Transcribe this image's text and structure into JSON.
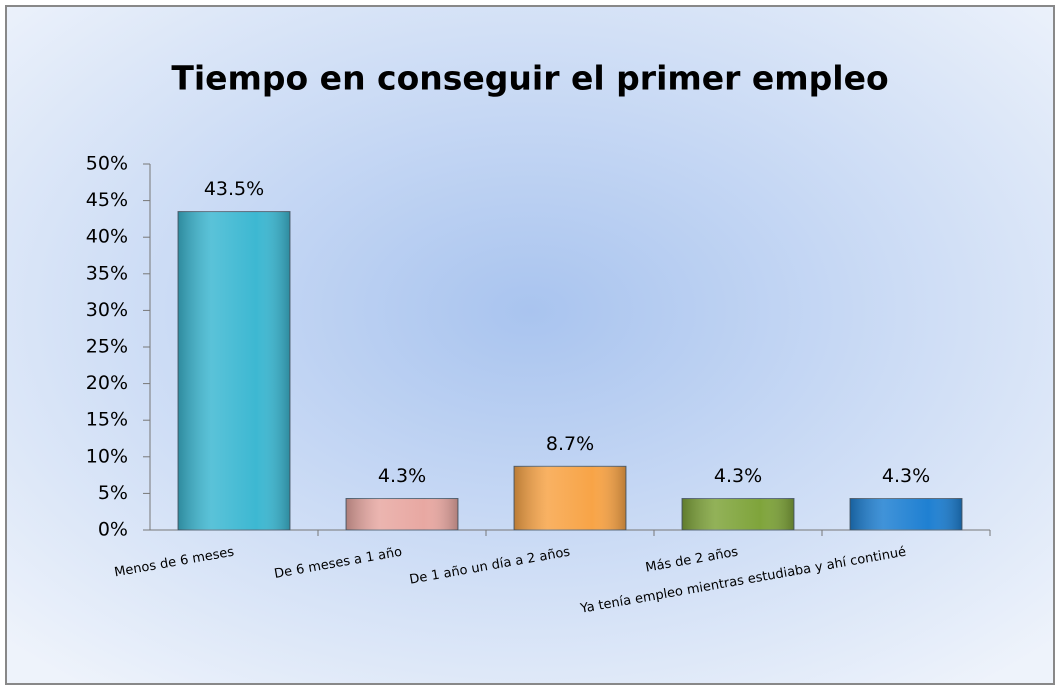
{
  "chart_data": {
    "type": "bar",
    "title": "Tiempo en conseguir el primer empleo",
    "categories": [
      "Menos de 6 meses",
      "De 6 meses a 1 año",
      "De 1 año un día a 2 años",
      "Más de 2 años",
      "Ya tenía empleo mientras estudiaba y ahí continué"
    ],
    "values": [
      43.5,
      4.3,
      8.7,
      4.3,
      4.3
    ],
    "value_labels": [
      "43.5%",
      "4.3%",
      "8.7%",
      "4.3%",
      "4.3%"
    ],
    "colors": [
      "#3db8d2",
      "#e8a8a2",
      "#f8a447",
      "#7fa43b",
      "#1f80d2"
    ],
    "ylim": [
      0,
      50
    ],
    "yticks": [
      {
        "value": 0,
        "label": "0%"
      },
      {
        "value": 5,
        "label": "5%"
      },
      {
        "value": 10,
        "label": "10%"
      },
      {
        "value": 15,
        "label": "15%"
      },
      {
        "value": 20,
        "label": "20%"
      },
      {
        "value": 25,
        "label": "25%"
      },
      {
        "value": 30,
        "label": "30%"
      },
      {
        "value": 35,
        "label": "35%"
      },
      {
        "value": 40,
        "label": "40%"
      },
      {
        "value": 45,
        "label": "45%"
      },
      {
        "value": 50,
        "label": "50%"
      }
    ],
    "grid": false
  }
}
